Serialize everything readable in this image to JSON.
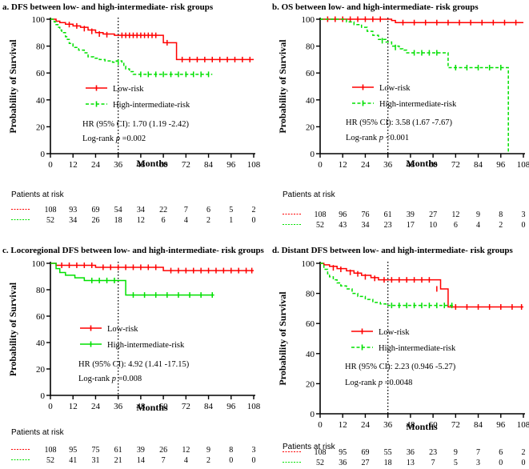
{
  "chart_data": [
    {
      "type": "line",
      "title": "a. DFS between low- and high-intermediate- risk groups",
      "xlabel": "Months",
      "ylabel": "Probability of Survival",
      "xticks": [
        0,
        12,
        24,
        36,
        48,
        60,
        72,
        84,
        96,
        108
      ],
      "yticks": [
        0,
        20,
        40,
        60,
        80,
        100
      ],
      "xlim": [
        0,
        108
      ],
      "ylim": [
        0,
        100
      ],
      "reference_line_x": 36,
      "series": [
        {
          "name": "Low-risk",
          "color": "#ff0000",
          "style": "solid",
          "x": [
            0,
            1,
            3,
            5,
            8,
            12,
            16,
            20,
            24,
            28,
            34,
            42,
            50,
            58,
            60,
            64,
            67,
            80,
            108
          ],
          "y": [
            100,
            100,
            98.5,
            97.5,
            96.3,
            95,
            94,
            92,
            90,
            89,
            88,
            88,
            88,
            88,
            82.5,
            82.5,
            70,
            70,
            70
          ],
          "censors": [
            [
              10,
              96
            ],
            [
              14,
              95
            ],
            [
              18,
              93
            ],
            [
              22,
              91
            ],
            [
              26,
              89
            ],
            [
              30,
              88.5
            ],
            [
              38,
              88
            ],
            [
              40,
              88
            ],
            [
              42,
              88
            ],
            [
              44,
              88
            ],
            [
              46,
              88
            ],
            [
              48,
              88
            ],
            [
              50,
              88
            ],
            [
              52,
              88
            ],
            [
              54,
              88
            ],
            [
              56,
              88
            ],
            [
              62,
              82.5
            ],
            [
              70,
              70
            ],
            [
              74,
              70
            ],
            [
              78,
              70
            ],
            [
              82,
              70
            ],
            [
              86,
              70
            ],
            [
              90,
              70
            ],
            [
              94,
              70
            ],
            [
              98,
              70
            ],
            [
              102,
              70
            ],
            [
              106,
              70
            ]
          ]
        },
        {
          "name": "High-intermediate-risk",
          "color": "#00e000",
          "style": "dashed",
          "x": [
            0,
            2,
            3,
            4,
            5,
            6,
            8,
            9,
            10,
            12,
            15,
            18,
            20,
            23,
            26,
            29,
            33,
            35,
            38,
            39,
            40,
            42,
            44,
            46,
            50,
            86
          ],
          "y": [
            100,
            98,
            96,
            94,
            92,
            90,
            87,
            85,
            82,
            79,
            77,
            75,
            72,
            71,
            70,
            69,
            68,
            69,
            68,
            65,
            63,
            61,
            59,
            59,
            59,
            59
          ],
          "censors": [
            [
              36,
              68
            ],
            [
              48,
              59
            ],
            [
              52,
              59
            ],
            [
              56,
              59
            ],
            [
              60,
              59
            ],
            [
              64,
              59
            ],
            [
              68,
              59
            ],
            [
              72,
              59
            ],
            [
              76,
              59
            ],
            [
              80,
              59
            ],
            [
              84,
              59
            ]
          ]
        }
      ],
      "legend": [
        "Low-risk",
        "High-intermediate-risk"
      ],
      "hr_text": "HR (95% CI): 1.70 (1.19 -2.42)",
      "logrank_label": "Log-rank",
      "p_symbol": "p",
      "p_text": "=0.002",
      "risk_label": "Patients at risk",
      "risk_low": [
        108,
        93,
        69,
        54,
        34,
        22,
        7,
        6,
        5,
        2
      ],
      "risk_high": [
        52,
        34,
        26,
        18,
        12,
        6,
        4,
        2,
        1,
        0
      ]
    },
    {
      "type": "line",
      "title": "b. OS between low- and high-intermediate- risk groups",
      "xlabel": "Months",
      "ylabel": "Probability of Survival",
      "xticks": [
        0,
        12,
        24,
        36,
        48,
        60,
        72,
        84,
        96,
        108
      ],
      "yticks": [
        0,
        20,
        40,
        60,
        80,
        100
      ],
      "xlim": [
        0,
        108
      ],
      "ylim": [
        0,
        100
      ],
      "reference_line_x": 36,
      "series": [
        {
          "name": "Low-risk",
          "color": "#ff0000",
          "style": "solid",
          "x": [
            0,
            36,
            38,
            40,
            108
          ],
          "y": [
            100,
            100,
            99,
            97.5,
            97.5
          ],
          "censors": [
            [
              4,
              100
            ],
            [
              8,
              100
            ],
            [
              12,
              100
            ],
            [
              16,
              100
            ],
            [
              20,
              100
            ],
            [
              24,
              100
            ],
            [
              28,
              100
            ],
            [
              32,
              100
            ],
            [
              44,
              97.5
            ],
            [
              50,
              97.5
            ],
            [
              56,
              97.5
            ],
            [
              62,
              97.5
            ],
            [
              68,
              97.5
            ],
            [
              74,
              97.5
            ],
            [
              80,
              97.5
            ],
            [
              86,
              97.5
            ],
            [
              92,
              97.5
            ],
            [
              98,
              97.5
            ],
            [
              104,
              97.5
            ]
          ]
        },
        {
          "name": "High-intermediate-risk",
          "color": "#00e000",
          "style": "dashed",
          "x": [
            0,
            14,
            18,
            22,
            25,
            28,
            31,
            35,
            38,
            42,
            44,
            46,
            66,
            68,
            99,
            100,
            101
          ],
          "y": [
            100,
            98,
            96,
            94,
            91,
            88,
            85,
            83,
            80,
            78,
            77,
            75,
            75,
            64,
            64,
            2,
            2
          ],
          "censors": [
            [
              33,
              84
            ],
            [
              40,
              79
            ],
            [
              50,
              75
            ],
            [
              54,
              75
            ],
            [
              58,
              75
            ],
            [
              62,
              75
            ],
            [
              72,
              64
            ],
            [
              78,
              64
            ],
            [
              84,
              64
            ],
            [
              90,
              64
            ],
            [
              96,
              64
            ]
          ]
        }
      ],
      "legend": [
        "Low-risk",
        "High-intermediate-risk"
      ],
      "hr_text": "HR (95% CI): 3.58 (1.67 -7.67)",
      "logrank_label": "Log-rank",
      "p_symbol": "p",
      "p_text": "<0.001",
      "risk_label": "Patients at risk",
      "risk_low": [
        108,
        96,
        76,
        61,
        39,
        27,
        12,
        9,
        8,
        3
      ],
      "risk_high": [
        52,
        43,
        34,
        23,
        17,
        10,
        6,
        4,
        2,
        0
      ]
    },
    {
      "type": "line",
      "title": "c. Locoregional DFS between low- and high-intermediate- risk groups",
      "xlabel": "Months",
      "ylabel": "Probability of Survival",
      "xticks": [
        0,
        12,
        24,
        36,
        48,
        60,
        72,
        84,
        96,
        108
      ],
      "yticks": [
        0,
        20,
        40,
        60,
        80,
        100
      ],
      "xlim": [
        0,
        108
      ],
      "ylim": [
        0,
        100
      ],
      "reference_line_x": 36,
      "series": [
        {
          "name": "Low-risk",
          "color": "#ff0000",
          "style": "solid",
          "x": [
            0,
            3,
            24,
            60,
            108
          ],
          "y": [
            100,
            98.5,
            97,
            94.5,
            94.5
          ],
          "censors": [
            [
              6,
              98.5
            ],
            [
              10,
              98.5
            ],
            [
              14,
              98.5
            ],
            [
              18,
              98.5
            ],
            [
              22,
              98.5
            ],
            [
              28,
              97
            ],
            [
              32,
              97
            ],
            [
              36,
              97
            ],
            [
              40,
              97
            ],
            [
              44,
              97
            ],
            [
              48,
              97
            ],
            [
              52,
              97
            ],
            [
              56,
              97
            ],
            [
              64,
              94.5
            ],
            [
              68,
              94.5
            ],
            [
              72,
              94.5
            ],
            [
              76,
              94.5
            ],
            [
              80,
              94.5
            ],
            [
              84,
              94.5
            ],
            [
              88,
              94.5
            ],
            [
              92,
              94.5
            ],
            [
              96,
              94.5
            ],
            [
              100,
              94.5
            ],
            [
              104,
              94.5
            ],
            [
              107,
              94.5
            ]
          ]
        },
        {
          "name": "High-intermediate-risk",
          "color": "#00e000",
          "style": "solid",
          "x": [
            0,
            3,
            5,
            8,
            13,
            18,
            38,
            40,
            87
          ],
          "y": [
            100,
            96,
            93,
            91,
            89,
            87,
            87,
            76,
            76
          ],
          "censors": [
            [
              22,
              87
            ],
            [
              26,
              87
            ],
            [
              30,
              87
            ],
            [
              34,
              87
            ],
            [
              44,
              76
            ],
            [
              50,
              76
            ],
            [
              56,
              76
            ],
            [
              62,
              76
            ],
            [
              68,
              76
            ],
            [
              74,
              76
            ],
            [
              80,
              76
            ],
            [
              86,
              76
            ]
          ]
        }
      ],
      "legend": [
        "Low-risk",
        "High-intermediate-risk"
      ],
      "hr_text": "HR (95% CI): 4.92 (1.41 -17.15)",
      "logrank_label": "Log-rank",
      "p_symbol": "p",
      "p_text": "=0.008",
      "risk_label": "Patients at risk",
      "risk_low": [
        108,
        95,
        75,
        61,
        39,
        26,
        12,
        9,
        8,
        3
      ],
      "risk_high": [
        52,
        41,
        31,
        21,
        14,
        7,
        4,
        2,
        0,
        0
      ]
    },
    {
      "type": "line",
      "title": "d. Distant DFS between low- and high-intermediate- risk groups",
      "xlabel": "Months",
      "ylabel": "Probability of Survival",
      "xticks": [
        0,
        12,
        24,
        36,
        48,
        60,
        72,
        84,
        96,
        108
      ],
      "yticks": [
        0,
        20,
        40,
        60,
        80,
        100
      ],
      "xlim": [
        0,
        108
      ],
      "ylim": [
        0,
        100
      ],
      "reference_line_x": 36,
      "series": [
        {
          "name": "Low-risk",
          "color": "#ff0000",
          "style": "solid",
          "x": [
            0,
            2,
            5,
            9,
            14,
            18,
            22,
            27,
            31,
            60,
            64,
            66,
            68,
            108
          ],
          "y": [
            100,
            99,
            98,
            96.5,
            95,
            93.5,
            92,
            90.5,
            89,
            89,
            83,
            83,
            71,
            71
          ],
          "censors": [
            [
              7,
              97
            ],
            [
              11,
              96
            ],
            [
              16,
              94
            ],
            [
              20,
              93
            ],
            [
              24,
              91
            ],
            [
              29,
              90
            ],
            [
              34,
              89
            ],
            [
              38,
              89
            ],
            [
              42,
              89
            ],
            [
              46,
              89
            ],
            [
              50,
              89
            ],
            [
              54,
              89
            ],
            [
              58,
              89
            ],
            [
              62,
              83
            ],
            [
              72,
              71
            ],
            [
              78,
              71
            ],
            [
              84,
              71
            ],
            [
              90,
              71
            ],
            [
              96,
              71
            ],
            [
              102,
              71
            ],
            [
              107,
              71
            ]
          ]
        },
        {
          "name": "High-intermediate-risk",
          "color": "#00e000",
          "style": "dashed",
          "x": [
            0,
            2,
            4,
            5,
            7,
            9,
            11,
            14,
            17,
            20,
            24,
            28,
            32,
            35,
            71
          ],
          "y": [
            100,
            96,
            93,
            91,
            89,
            87,
            85,
            83,
            80,
            78,
            76,
            74,
            73,
            72,
            72
          ],
          "censors": [
            [
              38,
              72
            ],
            [
              42,
              72
            ],
            [
              46,
              72
            ],
            [
              50,
              72
            ],
            [
              54,
              72
            ],
            [
              58,
              72
            ],
            [
              62,
              72
            ],
            [
              66,
              72
            ],
            [
              70,
              72
            ]
          ]
        }
      ],
      "legend": [
        "Low-risk",
        "High-intermediate-risk"
      ],
      "hr_text": "HR (95% CI): 2.23 (0.946 -5.27)",
      "logrank_label": "Log-rank",
      "p_symbol": "p",
      "p_text": "=0.0048",
      "risk_label": "Patients at risk",
      "risk_low": [
        108,
        95,
        69,
        55,
        36,
        23,
        9,
        7,
        6,
        2
      ],
      "risk_high": [
        52,
        36,
        27,
        18,
        13,
        7,
        5,
        3,
        0,
        0
      ]
    }
  ]
}
